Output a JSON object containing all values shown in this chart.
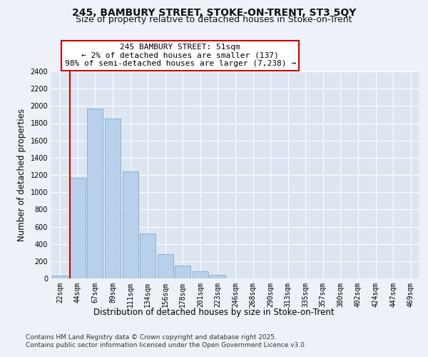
{
  "title_line1": "245, BAMBURY STREET, STOKE-ON-TRENT, ST3 5QY",
  "title_line2": "Size of property relative to detached houses in Stoke-on-Trent",
  "xlabel": "Distribution of detached houses by size in Stoke-on-Trent",
  "ylabel": "Number of detached properties",
  "categories": [
    "22sqm",
    "44sqm",
    "67sqm",
    "89sqm",
    "111sqm",
    "134sqm",
    "156sqm",
    "178sqm",
    "201sqm",
    "223sqm",
    "246sqm",
    "268sqm",
    "290sqm",
    "313sqm",
    "335sqm",
    "357sqm",
    "380sqm",
    "402sqm",
    "424sqm",
    "447sqm",
    "469sqm"
  ],
  "bar_values": [
    30,
    1170,
    1970,
    1850,
    1240,
    520,
    280,
    150,
    80,
    45,
    0,
    0,
    0,
    0,
    0,
    0,
    0,
    0,
    0,
    0,
    0
  ],
  "bar_color": "#b8d0ea",
  "bar_edge_color": "#7aaacf",
  "ylim": [
    0,
    2400
  ],
  "yticks": [
    0,
    200,
    400,
    600,
    800,
    1000,
    1200,
    1400,
    1600,
    1800,
    2000,
    2200,
    2400
  ],
  "property_line_color": "#cc0000",
  "annotation_box_text": "245 BAMBURY STREET: 51sqm\n← 2% of detached houses are smaller (137)\n98% of semi-detached houses are larger (7,238) →",
  "annotation_box_color": "#cc0000",
  "footnote1": "Contains HM Land Registry data © Crown copyright and database right 2025.",
  "footnote2": "Contains public sector information licensed under the Open Government Licence v3.0.",
  "background_color": "#eef2f8",
  "plot_background_color": "#dde6f0",
  "grid_color": "#ffffff",
  "title_fontsize": 10,
  "subtitle_fontsize": 9,
  "axis_label_fontsize": 8.5,
  "tick_fontsize": 7,
  "footnote_fontsize": 6.5,
  "annot_fontsize": 8
}
